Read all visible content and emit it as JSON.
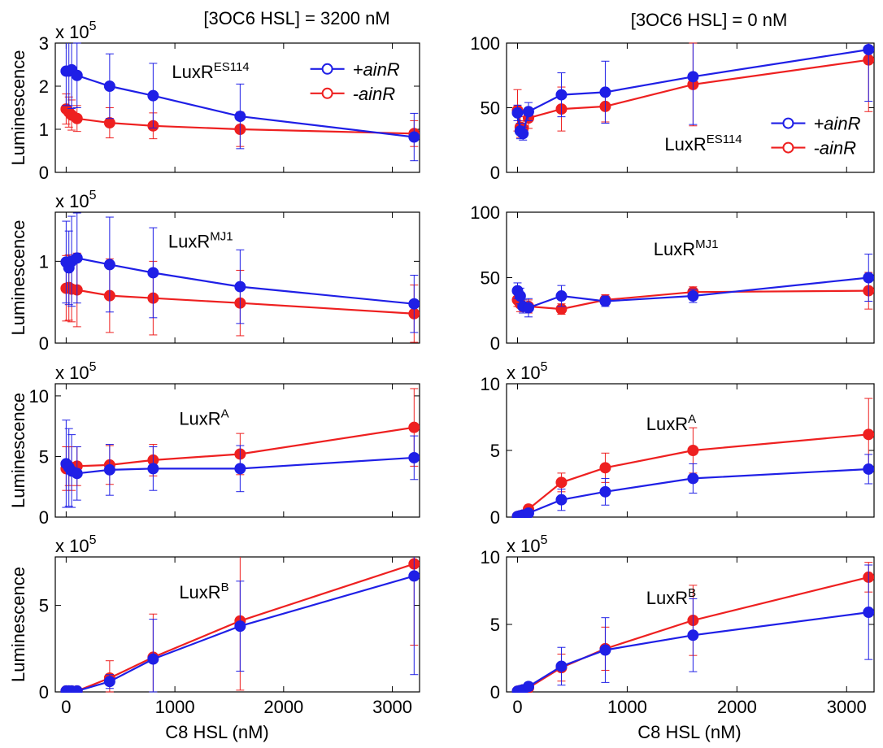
{
  "x_label": "C8 HSL  (nM)",
  "y_label": "Luminescence",
  "exp_prefix": "x 10",
  "exp_power": "5",
  "legend": {
    "plus": "+ainR",
    "minus": "-ainR"
  },
  "colors": {
    "plus": "#1f1fe6",
    "minus": "#ee2020"
  },
  "column_titles": [
    "[3OC6 HSL] = 3200 nM",
    "[3OC6 HSL] = 0 nM"
  ],
  "chart_data": [
    {
      "type": "line",
      "panel": "LuxR ES114, [3OC6 HSL] = 3200 nM",
      "label_main": "LuxR",
      "label_sup": "ES114",
      "scale": "x 10^5",
      "xlim": [
        -100,
        3250
      ],
      "ylim": [
        0,
        3
      ],
      "yticks": [
        0,
        1,
        2,
        3
      ],
      "xticks": [
        0,
        1000,
        2000,
        3000
      ],
      "legend": "top-right",
      "x": [
        0,
        25,
        50,
        100,
        400,
        800,
        1600,
        3200
      ],
      "series": [
        {
          "name": "+ainR",
          "values": [
            2.35,
            2.35,
            2.38,
            2.25,
            2.0,
            1.78,
            1.3,
            0.82
          ],
          "err": [
            0.8,
            0.8,
            0.9,
            0.75,
            0.75,
            0.75,
            0.75,
            0.55
          ]
        },
        {
          "name": "-ainR",
          "values": [
            1.47,
            1.4,
            1.33,
            1.25,
            1.15,
            1.08,
            1.0,
            0.9
          ],
          "err": [
            0.35,
            0.35,
            0.35,
            0.3,
            0.35,
            0.3,
            0.4,
            0.3
          ]
        }
      ]
    },
    {
      "type": "line",
      "panel": "LuxR ES114, [3OC6 HSL] = 0 nM",
      "label_main": "LuxR",
      "label_sup": "ES114",
      "ylim": [
        0,
        100
      ],
      "yticks": [
        0,
        50,
        100
      ],
      "xlim": [
        -100,
        3250
      ],
      "xticks": [
        0,
        1000,
        2000,
        3000
      ],
      "legend": "middle-right",
      "x": [
        0,
        25,
        50,
        100,
        400,
        800,
        1600,
        3200
      ],
      "series": [
        {
          "name": "+ainR",
          "values": [
            46,
            32,
            30,
            47,
            60,
            62,
            74,
            95
          ],
          "err": [
            6,
            6,
            5,
            7,
            17,
            24,
            37,
            40
          ]
        },
        {
          "name": "-ainR",
          "values": [
            48,
            35,
            34,
            42,
            49,
            51,
            68,
            87
          ],
          "err": [
            16,
            8,
            6,
            8,
            17,
            12,
            32,
            40
          ]
        }
      ]
    },
    {
      "type": "line",
      "panel": "LuxR MJ1, [3OC6 HSL] = 3200 nM",
      "label_main": "LuxR",
      "label_sup": "MJ1",
      "scale": "x 10^5",
      "xlim": [
        -100,
        3250
      ],
      "ylim": [
        0,
        1.6
      ],
      "yticks": [
        0,
        1
      ],
      "xticks": [
        0,
        1000,
        2000,
        3000
      ],
      "x": [
        0,
        25,
        50,
        100,
        400,
        800,
        1600,
        3200
      ],
      "series": [
        {
          "name": "+ainR",
          "values": [
            0.99,
            0.92,
            1.0,
            1.04,
            0.96,
            0.86,
            0.69,
            0.48
          ],
          "err": [
            0.5,
            0.45,
            0.55,
            0.55,
            0.58,
            0.55,
            0.45,
            0.35
          ]
        },
        {
          "name": "-ainR",
          "values": [
            0.67,
            0.68,
            0.66,
            0.65,
            0.58,
            0.55,
            0.49,
            0.36
          ],
          "err": [
            0.4,
            0.4,
            0.4,
            0.45,
            0.45,
            0.45,
            0.4,
            0.35
          ]
        }
      ]
    },
    {
      "type": "line",
      "panel": "LuxR MJ1, [3OC6 HSL] = 0 nM",
      "label_main": "LuxR",
      "label_sup": "MJ1",
      "ylim": [
        0,
        100
      ],
      "yticks": [
        0,
        50,
        100
      ],
      "xlim": [
        -100,
        3250
      ],
      "xticks": [
        0,
        1000,
        2000,
        3000
      ],
      "x": [
        0,
        25,
        50,
        100,
        400,
        800,
        1600,
        3200
      ],
      "series": [
        {
          "name": "+ainR",
          "values": [
            40,
            36,
            28,
            27,
            36,
            32,
            36,
            50
          ],
          "err": [
            6,
            6,
            5,
            7,
            8,
            4,
            5,
            18
          ]
        },
        {
          "name": "-ainR",
          "values": [
            33,
            30,
            28,
            28,
            26,
            33,
            39,
            40
          ],
          "err": [
            5,
            6,
            5,
            5,
            4,
            4,
            4,
            14
          ]
        }
      ]
    },
    {
      "type": "line",
      "panel": "LuxR A, [3OC6 HSL] = 3200 nM",
      "label_main": "LuxR",
      "label_sup": "A",
      "scale": "x 10^5",
      "xlim": [
        -100,
        3250
      ],
      "ylim": [
        0,
        11
      ],
      "yticks": [
        0,
        5,
        10
      ],
      "xticks": [
        0,
        1000,
        2000,
        3000
      ],
      "x": [
        0,
        25,
        50,
        100,
        400,
        800,
        1600,
        3200
      ],
      "series": [
        {
          "name": "+ainR",
          "values": [
            4.4,
            4.1,
            3.8,
            3.6,
            3.9,
            4.0,
            4.0,
            4.9
          ],
          "err": [
            3.6,
            3.2,
            3.0,
            2.2,
            2.1,
            1.8,
            1.9,
            1.8
          ]
        },
        {
          "name": "-ainR",
          "values": [
            4.0,
            4.2,
            4.0,
            4.2,
            4.3,
            4.7,
            5.2,
            7.4
          ],
          "err": [
            1.8,
            1.6,
            1.8,
            1.6,
            1.6,
            1.3,
            1.7,
            3.2
          ]
        }
      ]
    },
    {
      "type": "line",
      "panel": "LuxR A, [3OC6 HSL] = 0 nM",
      "label_main": "LuxR",
      "label_sup": "A",
      "scale": "x 10^5",
      "xlim": [
        -100,
        3250
      ],
      "ylim": [
        0,
        10
      ],
      "yticks": [
        0,
        5,
        10
      ],
      "xticks": [
        0,
        1000,
        2000,
        3000
      ],
      "x": [
        0,
        25,
        50,
        100,
        400,
        800,
        1600,
        3200
      ],
      "series": [
        {
          "name": "+ainR",
          "values": [
            0.05,
            0.1,
            0.15,
            0.3,
            1.3,
            1.9,
            2.9,
            3.6
          ],
          "err": [
            0.1,
            0.1,
            0.1,
            0.2,
            0.8,
            1.0,
            1.1,
            1.1
          ]
        },
        {
          "name": "-ainR",
          "values": [
            0.05,
            0.1,
            0.15,
            0.6,
            2.6,
            3.7,
            5.0,
            6.2
          ],
          "err": [
            0.1,
            0.1,
            0.1,
            0.3,
            0.7,
            1.1,
            1.7,
            2.7
          ]
        }
      ]
    },
    {
      "type": "line",
      "panel": "LuxR B, [3OC6 HSL] = 3200 nM",
      "label_main": "LuxR",
      "label_sup": "B",
      "scale": "x 10^5",
      "xlim": [
        -100,
        3250
      ],
      "ylim": [
        0,
        7.8
      ],
      "yticks": [
        0,
        5
      ],
      "xticks": [
        0,
        1000,
        2000,
        3000
      ],
      "x": [
        0,
        25,
        50,
        100,
        400,
        800,
        1600,
        3200
      ],
      "series": [
        {
          "name": "+ainR",
          "values": [
            0.05,
            0.05,
            0.05,
            0.05,
            0.6,
            1.9,
            3.8,
            6.7
          ],
          "err": [
            0.1,
            0.1,
            0.1,
            0.1,
            0.4,
            2.3,
            2.6,
            5.7
          ]
        },
        {
          "name": "-ainR",
          "values": [
            0.05,
            0.05,
            0.05,
            0.05,
            0.8,
            2.0,
            4.1,
            7.4
          ],
          "err": [
            0.1,
            0.1,
            0.1,
            0.1,
            1.0,
            2.5,
            4.0,
            4.7
          ]
        }
      ]
    },
    {
      "type": "line",
      "panel": "LuxR B, [3OC6 HSL] = 0 nM",
      "label_main": "LuxR",
      "label_sup": "B",
      "scale": "x 10^5",
      "xlim": [
        -100,
        3250
      ],
      "ylim": [
        0,
        10
      ],
      "yticks": [
        0,
        5,
        10
      ],
      "xticks": [
        0,
        1000,
        2000,
        3000
      ],
      "x": [
        0,
        25,
        50,
        100,
        400,
        800,
        1600,
        3200
      ],
      "series": [
        {
          "name": "+ainR",
          "values": [
            0.05,
            0.1,
            0.15,
            0.4,
            1.9,
            3.1,
            4.2,
            5.9
          ],
          "err": [
            0.1,
            0.1,
            0.1,
            0.3,
            1.4,
            2.4,
            2.7,
            3.5
          ]
        },
        {
          "name": "-ainR",
          "values": [
            0.05,
            0.1,
            0.15,
            0.3,
            1.8,
            3.2,
            5.3,
            8.5
          ],
          "err": [
            0.1,
            0.1,
            0.1,
            0.2,
            1.0,
            1.6,
            2.6,
            1.1
          ]
        }
      ]
    }
  ]
}
